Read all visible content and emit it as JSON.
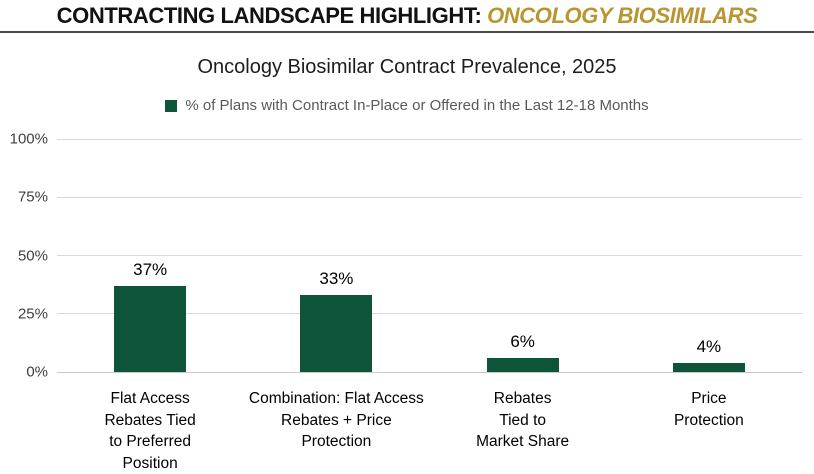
{
  "header": {
    "title_black": "CONTRACTING LANDSCAPE HIGHLIGHT: ",
    "title_gold": "ONCOLOGY BIOSIMILARS",
    "gold_color": "#B8952F"
  },
  "chart": {
    "title": "Oncology Biosimilar Contract Prevalence, 2025",
    "legend_label": "% of Plans with Contract In-Place or Offered in the Last 12-18 Months"
  },
  "chart_data": {
    "type": "bar",
    "title": "Oncology Biosimilar Contract Prevalence, 2025",
    "legend": [
      "% of Plans with Contract In-Place or Offered in the Last 12-18 Months"
    ],
    "legend_position": "top",
    "categories": [
      "Flat Access Rebates Tied to Preferred Position",
      "Combination: Flat Access Rebates + Price Protection",
      "Rebates Tied to Market Share",
      "Price Protection"
    ],
    "category_lines": [
      [
        "Flat Access",
        "Rebates Tied",
        "to Preferred",
        "Position"
      ],
      [
        "Combination: Flat Access",
        "Rebates + Price",
        "Protection"
      ],
      [
        "Rebates",
        "Tied to",
        "Market Share"
      ],
      [
        "Price",
        "Protection"
      ]
    ],
    "values": [
      37,
      33,
      6,
      4
    ],
    "value_labels": [
      "37%",
      "33%",
      "6%",
      "4%"
    ],
    "xlabel": "",
    "ylabel": "",
    "ylim": [
      0,
      100
    ],
    "yticks": [
      "0%",
      "25%",
      "50%",
      "75%",
      "100%"
    ],
    "grid": true,
    "bar_color": "#0E5438",
    "gridline_color": "#d9d9d9"
  }
}
